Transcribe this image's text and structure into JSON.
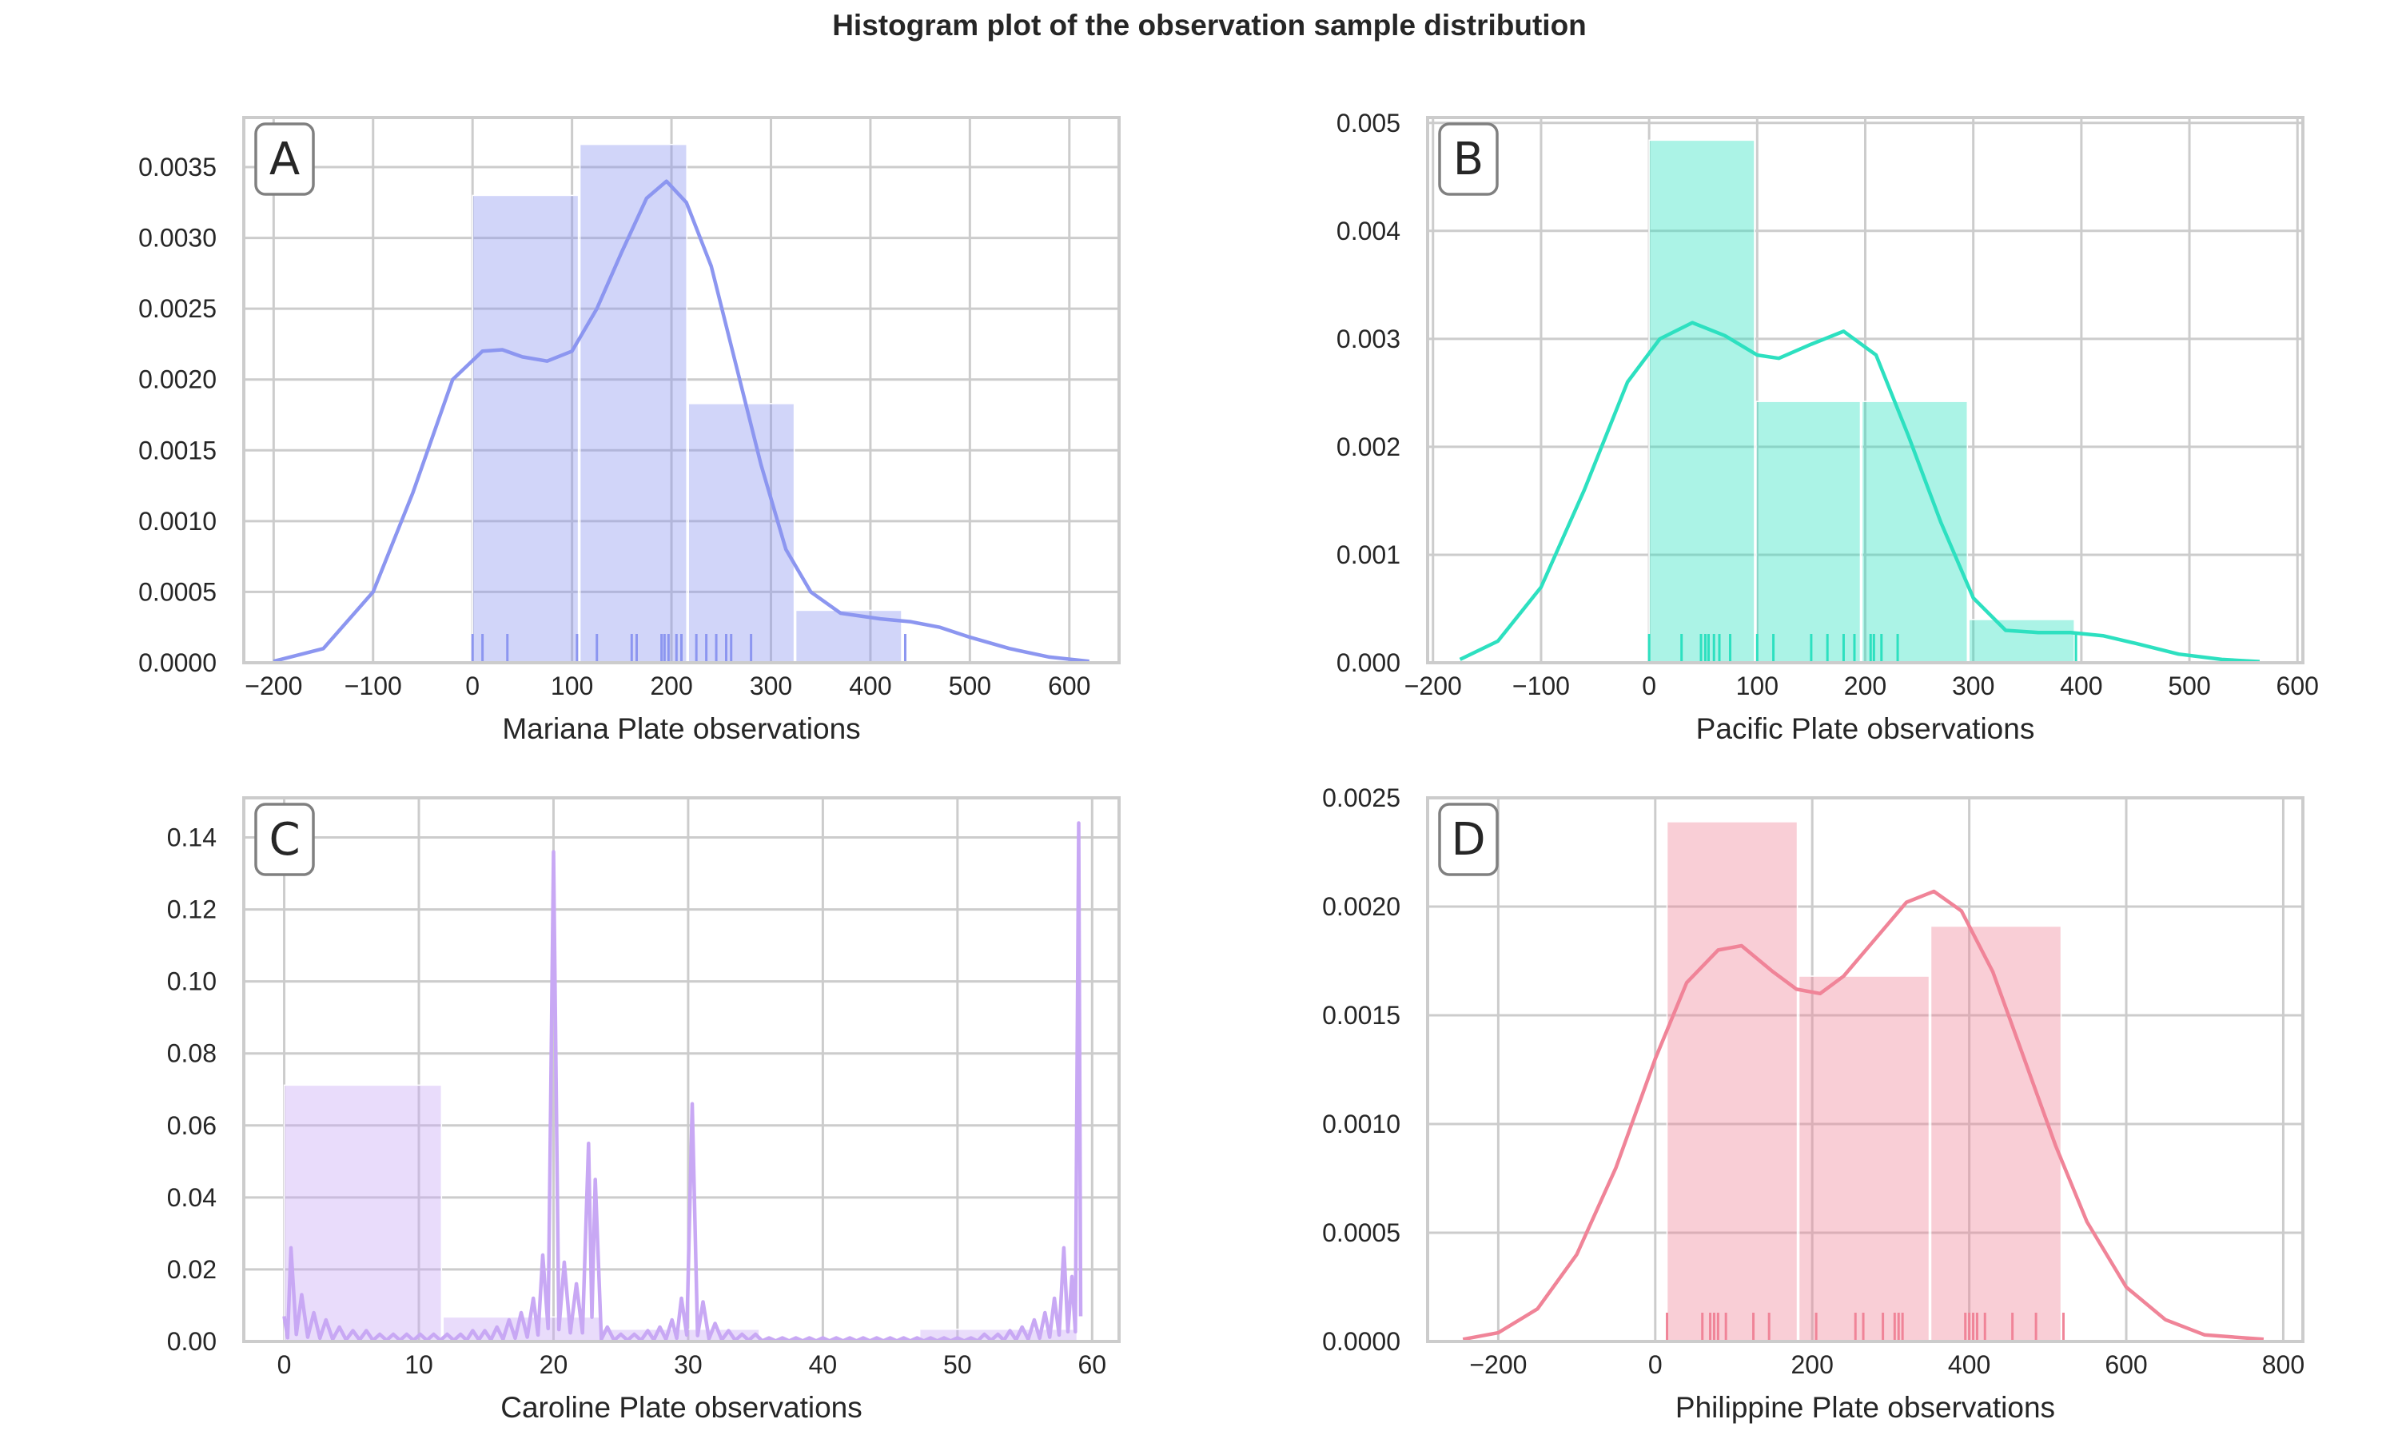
{
  "title": "Histogram plot of the observation sample distribution",
  "chart_data": [
    {
      "type": "histogram",
      "panel_letter": "A",
      "xlabel": "Mariana Plate observations",
      "ylabel": "",
      "color": "#8c96f0",
      "xlim": [
        -230,
        650
      ],
      "ylim": [
        0,
        0.00385
      ],
      "xticks": [
        -200,
        -100,
        0,
        100,
        200,
        300,
        400,
        500,
        600
      ],
      "xtick_labels": [
        "−200",
        "−100",
        "0",
        "100",
        "200",
        "300",
        "400",
        "500",
        "600"
      ],
      "yticks": [
        0,
        0.0005,
        0.001,
        0.0015,
        0.002,
        0.0025,
        0.003,
        0.0035
      ],
      "ytick_labels": [
        "0.0000",
        "0.0005",
        "0.0010",
        "0.0015",
        "0.0020",
        "0.0025",
        "0.0030",
        "0.0035"
      ],
      "grid": true,
      "bins": [
        {
          "x0": 0,
          "x1": 108,
          "density": 0.0033
        },
        {
          "x0": 108,
          "x1": 217,
          "density": 0.00366
        },
        {
          "x0": 217,
          "x1": 325,
          "density": 0.00183
        },
        {
          "x0": 325,
          "x1": 433,
          "density": 0.00037
        }
      ],
      "kde": [
        [
          -200,
          1e-05
        ],
        [
          -150,
          0.0001
        ],
        [
          -100,
          0.0005
        ],
        [
          -60,
          0.0012
        ],
        [
          -20,
          0.002
        ],
        [
          10,
          0.0022
        ],
        [
          30,
          0.00221
        ],
        [
          50,
          0.00216
        ],
        [
          75,
          0.00213
        ],
        [
          100,
          0.0022
        ],
        [
          125,
          0.0025
        ],
        [
          150,
          0.0029
        ],
        [
          175,
          0.00328
        ],
        [
          195,
          0.0034
        ],
        [
          215,
          0.00325
        ],
        [
          240,
          0.0028
        ],
        [
          265,
          0.0021
        ],
        [
          290,
          0.0014
        ],
        [
          315,
          0.0008
        ],
        [
          340,
          0.0005
        ],
        [
          370,
          0.00035
        ],
        [
          410,
          0.00031
        ],
        [
          440,
          0.00029
        ],
        [
          470,
          0.00025
        ],
        [
          500,
          0.00018
        ],
        [
          540,
          0.0001
        ],
        [
          580,
          4e-05
        ],
        [
          620,
          1e-05
        ]
      ],
      "rug": [
        0,
        10,
        35,
        105,
        125,
        160,
        165,
        190,
        193,
        197,
        205,
        210,
        225,
        235,
        245,
        255,
        260,
        280,
        435
      ]
    },
    {
      "type": "histogram",
      "panel_letter": "B",
      "xlabel": "Pacific Plate observations",
      "ylabel": "",
      "color": "#2de0c0",
      "xlim": [
        -205,
        605
      ],
      "ylim": [
        0,
        0.00505
      ],
      "xticks": [
        -200,
        -100,
        0,
        100,
        200,
        300,
        400,
        500,
        600
      ],
      "xtick_labels": [
        "−200",
        "−100",
        "0",
        "100",
        "200",
        "300",
        "400",
        "500",
        "600"
      ],
      "yticks": [
        0,
        0.001,
        0.002,
        0.003,
        0.004,
        0.005
      ],
      "ytick_labels": [
        "0.000",
        "0.001",
        "0.002",
        "0.003",
        "0.004",
        "0.005"
      ],
      "grid": true,
      "bins": [
        {
          "x0": 0,
          "x1": 99,
          "density": 0.00484
        },
        {
          "x0": 99,
          "x1": 197,
          "density": 0.00242
        },
        {
          "x0": 197,
          "x1": 296,
          "density": 0.00242
        },
        {
          "x0": 296,
          "x1": 395,
          "density": 0.0004
        }
      ],
      "kde": [
        [
          -175,
          3e-05
        ],
        [
          -140,
          0.0002
        ],
        [
          -100,
          0.0007
        ],
        [
          -60,
          0.0016
        ],
        [
          -20,
          0.0026
        ],
        [
          10,
          0.003
        ],
        [
          40,
          0.00315
        ],
        [
          70,
          0.00303
        ],
        [
          100,
          0.00285
        ],
        [
          120,
          0.00282
        ],
        [
          150,
          0.00295
        ],
        [
          180,
          0.00307
        ],
        [
          210,
          0.00285
        ],
        [
          240,
          0.0021
        ],
        [
          270,
          0.0013
        ],
        [
          300,
          0.0006
        ],
        [
          330,
          0.0003
        ],
        [
          360,
          0.00028
        ],
        [
          390,
          0.00028
        ],
        [
          420,
          0.00025
        ],
        [
          450,
          0.00018
        ],
        [
          490,
          8e-05
        ],
        [
          530,
          3e-05
        ],
        [
          565,
          1e-05
        ]
      ],
      "rug": [
        0,
        30,
        48,
        52,
        55,
        60,
        65,
        75,
        100,
        115,
        150,
        165,
        180,
        190,
        205,
        208,
        215,
        230,
        395
      ]
    },
    {
      "type": "histogram",
      "panel_letter": "C",
      "xlabel": "Caroline Plate observations",
      "ylabel": "",
      "color": "#c8a8f4",
      "xlim": [
        -3,
        62
      ],
      "ylim": [
        0,
        0.151
      ],
      "xticks": [
        0,
        10,
        20,
        30,
        40,
        50,
        60
      ],
      "xtick_labels": [
        "0",
        "10",
        "20",
        "30",
        "40",
        "50",
        "60"
      ],
      "yticks": [
        0,
        0.02,
        0.04,
        0.06,
        0.08,
        0.1,
        0.12,
        0.14
      ],
      "ytick_labels": [
        "0.00",
        "0.02",
        "0.04",
        "0.06",
        "0.08",
        "0.10",
        "0.12",
        "0.14"
      ],
      "grid": true,
      "bins": [
        {
          "x0": 0,
          "x1": 11.8,
          "density": 0.0712
        },
        {
          "x0": 11.8,
          "x1": 23.6,
          "density": 0.0068
        },
        {
          "x0": 23.6,
          "x1": 35.4,
          "density": 0.0034
        },
        {
          "x0": 35.4,
          "x1": 47.2,
          "density": 0.0008
        },
        {
          "x0": 47.2,
          "x1": 59,
          "density": 0.0034
        }
      ],
      "kde_spikes": [
        {
          "x": 0,
          "h": 0.007
        },
        {
          "x": 0.5,
          "h": 0.026
        },
        {
          "x": 1.3,
          "h": 0.013
        },
        {
          "x": 2.2,
          "h": 0.008
        },
        {
          "x": 3.1,
          "h": 0.006
        },
        {
          "x": 4.1,
          "h": 0.004
        },
        {
          "x": 5.1,
          "h": 0.003
        },
        {
          "x": 6.1,
          "h": 0.003
        },
        {
          "x": 7.1,
          "h": 0.002
        },
        {
          "x": 8.1,
          "h": 0.002
        },
        {
          "x": 9.1,
          "h": 0.002
        },
        {
          "x": 10.1,
          "h": 0.002
        },
        {
          "x": 11.1,
          "h": 0.002
        },
        {
          "x": 12.1,
          "h": 0.002
        },
        {
          "x": 13.1,
          "h": 0.002
        },
        {
          "x": 14,
          "h": 0.003
        },
        {
          "x": 14.9,
          "h": 0.003
        },
        {
          "x": 15.8,
          "h": 0.004
        },
        {
          "x": 16.7,
          "h": 0.006
        },
        {
          "x": 17.6,
          "h": 0.008
        },
        {
          "x": 18.5,
          "h": 0.012
        },
        {
          "x": 19.2,
          "h": 0.024
        },
        {
          "x": 20,
          "h": 0.136
        },
        {
          "x": 20.8,
          "h": 0.022
        },
        {
          "x": 21.7,
          "h": 0.016
        },
        {
          "x": 22.6,
          "h": 0.055
        },
        {
          "x": 23.1,
          "h": 0.045
        },
        {
          "x": 24,
          "h": 0.004
        },
        {
          "x": 25,
          "h": 0.002
        },
        {
          "x": 26,
          "h": 0.002
        },
        {
          "x": 27,
          "h": 0.003
        },
        {
          "x": 27.9,
          "h": 0.004
        },
        {
          "x": 28.8,
          "h": 0.006
        },
        {
          "x": 29.5,
          "h": 0.012
        },
        {
          "x": 30.3,
          "h": 0.066
        },
        {
          "x": 31.1,
          "h": 0.011
        },
        {
          "x": 32,
          "h": 0.005
        },
        {
          "x": 33,
          "h": 0.003
        },
        {
          "x": 34,
          "h": 0.002
        },
        {
          "x": 35,
          "h": 0.002
        },
        {
          "x": 36,
          "h": 0.001
        },
        {
          "x": 37,
          "h": 0.001
        },
        {
          "x": 38,
          "h": 0.001
        },
        {
          "x": 39,
          "h": 0.001
        },
        {
          "x": 40,
          "h": 0.001
        },
        {
          "x": 41,
          "h": 0.001
        },
        {
          "x": 42,
          "h": 0.001
        },
        {
          "x": 43,
          "h": 0.001
        },
        {
          "x": 44,
          "h": 0.001
        },
        {
          "x": 45,
          "h": 0.001
        },
        {
          "x": 46,
          "h": 0.001
        },
        {
          "x": 47,
          "h": 0.001
        },
        {
          "x": 48,
          "h": 0.001
        },
        {
          "x": 49,
          "h": 0.001
        },
        {
          "x": 50,
          "h": 0.001
        },
        {
          "x": 51,
          "h": 0.001
        },
        {
          "x": 52,
          "h": 0.002
        },
        {
          "x": 53,
          "h": 0.002
        },
        {
          "x": 53.9,
          "h": 0.003
        },
        {
          "x": 54.8,
          "h": 0.004
        },
        {
          "x": 55.7,
          "h": 0.006
        },
        {
          "x": 56.5,
          "h": 0.008
        },
        {
          "x": 57.2,
          "h": 0.012
        },
        {
          "x": 57.9,
          "h": 0.026
        },
        {
          "x": 58.5,
          "h": 0.018
        },
        {
          "x": 59,
          "h": 0.144
        }
      ],
      "rug": []
    },
    {
      "type": "histogram",
      "panel_letter": "D",
      "xlabel": "Philippine Plate observations",
      "ylabel": "",
      "color": "#f08498",
      "xlim": [
        -290,
        825
      ],
      "ylim": [
        0,
        0.0025
      ],
      "xticks": [
        -200,
        0,
        200,
        400,
        600,
        800
      ],
      "xtick_labels": [
        "−200",
        "0",
        "200",
        "400",
        "600",
        "800"
      ],
      "yticks": [
        0,
        0.0005,
        0.001,
        0.0015,
        0.002,
        0.0025
      ],
      "ytick_labels": [
        "0.0000",
        "0.0005",
        "0.0010",
        "0.0015",
        "0.0020",
        "0.0025"
      ],
      "grid": true,
      "bins": [
        {
          "x0": 15,
          "x1": 183,
          "density": 0.00239
        },
        {
          "x0": 183,
          "x1": 351,
          "density": 0.00168
        },
        {
          "x0": 351,
          "x1": 519,
          "density": 0.00191
        }
      ],
      "kde": [
        [
          -245,
          1e-05
        ],
        [
          -200,
          4e-05
        ],
        [
          -150,
          0.00015
        ],
        [
          -100,
          0.0004
        ],
        [
          -50,
          0.0008
        ],
        [
          0,
          0.0013
        ],
        [
          40,
          0.00165
        ],
        [
          80,
          0.0018
        ],
        [
          110,
          0.00182
        ],
        [
          150,
          0.0017
        ],
        [
          180,
          0.00162
        ],
        [
          210,
          0.0016
        ],
        [
          240,
          0.00168
        ],
        [
          280,
          0.00185
        ],
        [
          320,
          0.00202
        ],
        [
          355,
          0.00207
        ],
        [
          390,
          0.00198
        ],
        [
          430,
          0.0017
        ],
        [
          470,
          0.0013
        ],
        [
          510,
          0.0009
        ],
        [
          550,
          0.00055
        ],
        [
          600,
          0.00025
        ],
        [
          650,
          0.0001
        ],
        [
          700,
          3e-05
        ],
        [
          775,
          1e-05
        ]
      ],
      "rug": [
        15,
        60,
        70,
        75,
        80,
        90,
        125,
        145,
        205,
        255,
        265,
        290,
        305,
        310,
        315,
        395,
        400,
        405,
        410,
        420,
        455,
        485,
        520
      ]
    }
  ]
}
